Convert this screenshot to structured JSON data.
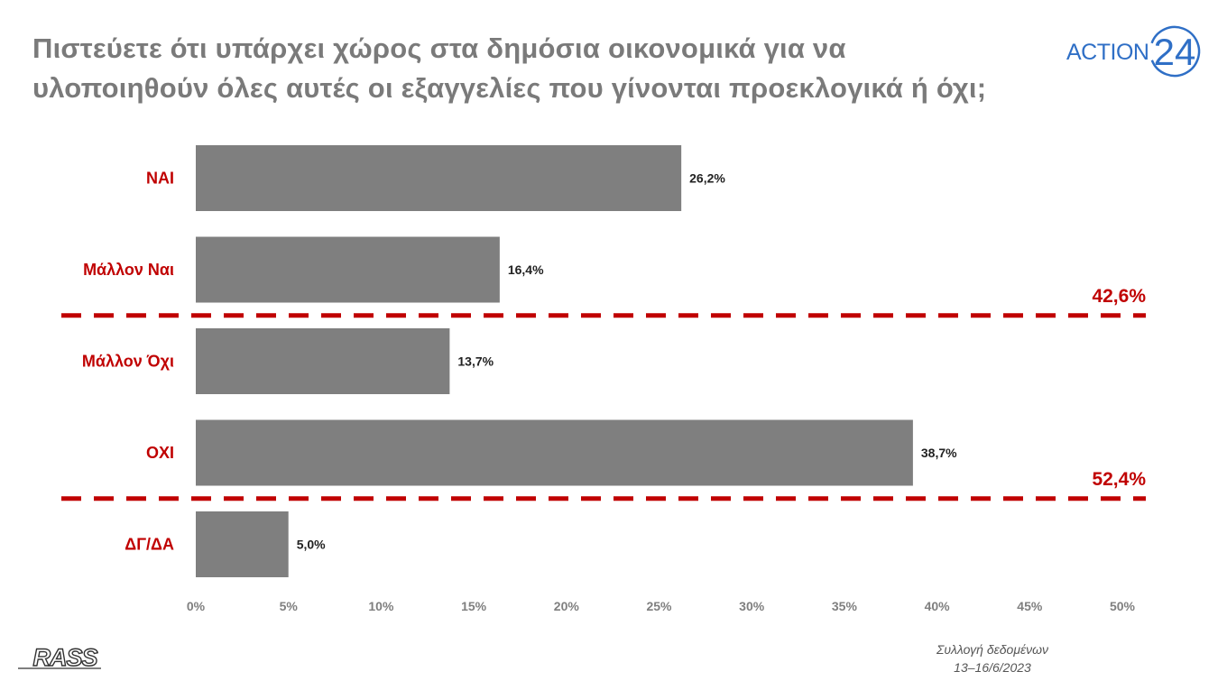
{
  "title": {
    "line1": "Πιστεύετε ότι υπάρχει χώρος στα δημόσια οικονομικά για να",
    "line2": "υλοποιηθούν όλες αυτές οι εξαγγελίες που γίνονται προεκλογικά ή όχι;"
  },
  "logo": {
    "brand": "ACTION",
    "number": "24",
    "color": "#2f6fc6"
  },
  "chart_data": {
    "type": "bar",
    "orientation": "horizontal",
    "categories": [
      "ΝΑΙ",
      "Μάλλον Ναι",
      "Μάλλον Όχι",
      "ΟΧΙ",
      "ΔΓ/ΔΑ"
    ],
    "values": [
      26.2,
      16.4,
      13.7,
      38.7,
      5.0
    ],
    "value_labels": [
      "26,2%",
      "16,4%",
      "13,7%",
      "38,7%",
      "5,0%"
    ],
    "xlim": [
      0,
      50
    ],
    "ticks": [
      0,
      5,
      10,
      15,
      20,
      25,
      30,
      35,
      40,
      45,
      50
    ],
    "tick_labels": [
      "0%",
      "5%",
      "10%",
      "15%",
      "20%",
      "25%",
      "30%",
      "35%",
      "40%",
      "45%",
      "50%"
    ],
    "bar_color": "#7f7f7f",
    "category_color": "#c00000",
    "groups": [
      {
        "label": "42,6%",
        "after_category": 1
      },
      {
        "label": "52,4%",
        "after_category": 3
      }
    ],
    "divider_color": "#c00000"
  },
  "footer": {
    "source_logo": "RASS",
    "line1": "Συλλογή δεδομένων",
    "line2": "13–16/6/2023"
  }
}
